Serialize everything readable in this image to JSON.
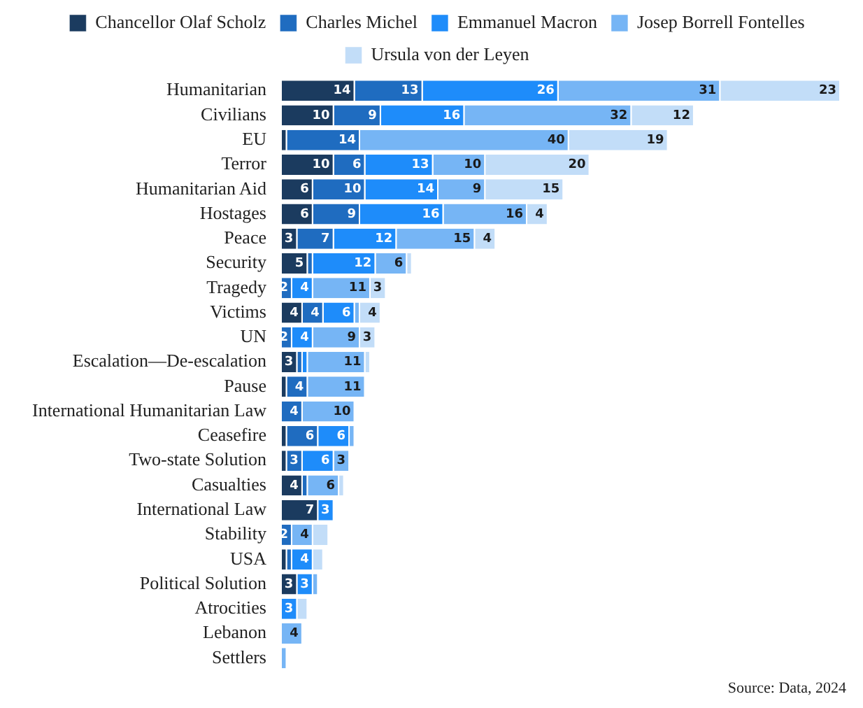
{
  "chart_data": {
    "type": "bar",
    "orientation": "horizontal",
    "stacked": true,
    "legend": "top",
    "data_labels": false,
    "categories": [
      "Humanitarian",
      "Civilians",
      "EU",
      "Terror",
      "Humanitarian Aid",
      "Hostages",
      "Peace",
      "Security",
      "Tragedy",
      "Victims",
      "UN",
      "Escalation—De-escalation",
      "Pause",
      "International Humanitarian Law",
      "Ceasefire",
      "Two-state Solution",
      "Casualties",
      "International Law",
      "Stability",
      "USA",
      "Political Solution",
      "Atrocities",
      "Lebanon",
      "Settlers"
    ],
    "series": [
      {
        "name": "Chancellor Olaf Scholz",
        "color": "#1b3b5f",
        "values": [
          14,
          10,
          1,
          10,
          6,
          6,
          3,
          5,
          0,
          4,
          0,
          3,
          1,
          0,
          1,
          1,
          4,
          7,
          0,
          1,
          3,
          0,
          0,
          0
        ],
        "value_labels": [
          "14",
          "10",
          null,
          "10",
          "6",
          "6",
          "3",
          "5",
          null,
          "4",
          null,
          "3",
          null,
          null,
          null,
          null,
          "4",
          "7",
          null,
          null,
          "3",
          null,
          null,
          null
        ]
      },
      {
        "name": "Charles Michel",
        "color": "#1f6cc0",
        "values": [
          13,
          9,
          14,
          6,
          10,
          9,
          7,
          1,
          2,
          4,
          2,
          1,
          4,
          4,
          6,
          3,
          1,
          0,
          2,
          1,
          0,
          0,
          0,
          0
        ],
        "value_labels": [
          "13",
          "9",
          "14",
          "6",
          "10",
          "9",
          "7",
          null,
          "2",
          "4",
          "2",
          null,
          "4",
          "4",
          "6",
          "3",
          null,
          null,
          "2",
          null,
          null,
          null,
          null,
          null
        ]
      },
      {
        "name": "Emmanuel Macron",
        "color": "#1e8cfa",
        "values": [
          26,
          16,
          0,
          13,
          14,
          16,
          12,
          12,
          4,
          6,
          4,
          1,
          0,
          0,
          6,
          6,
          0,
          3,
          0,
          4,
          3,
          3,
          0,
          0
        ],
        "value_labels": [
          "26",
          "16",
          null,
          "13",
          "14",
          "16",
          "12",
          "12",
          "4",
          "6",
          "4",
          null,
          null,
          null,
          "6",
          "6",
          null,
          "3",
          null,
          "4",
          "3",
          "3",
          null,
          null
        ]
      },
      {
        "name": "Josep Borrell Fontelles",
        "color": "#76b5f5",
        "values": [
          31,
          32,
          40,
          10,
          9,
          16,
          15,
          6,
          11,
          1,
          9,
          11,
          11,
          10,
          1,
          3,
          6,
          0,
          4,
          0,
          1,
          0,
          4,
          1
        ],
        "value_labels": [
          "31",
          "32",
          "40",
          "10",
          "9",
          "16",
          "15",
          "6",
          "11",
          null,
          "9",
          "11",
          "11",
          "10",
          null,
          "3",
          "6",
          null,
          "4",
          null,
          null,
          null,
          "4",
          null
        ]
      },
      {
        "name": "Ursula von der Leyen",
        "color": "#c2ddf8",
        "values": [
          23,
          12,
          19,
          20,
          15,
          4,
          4,
          1,
          3,
          4,
          3,
          1,
          0,
          0,
          0,
          0,
          1,
          0,
          3,
          2,
          0,
          2,
          0,
          0
        ],
        "value_labels": [
          "23",
          "12",
          "19",
          "20",
          "15",
          "4",
          "4",
          null,
          "3",
          "4",
          "3",
          null,
          null,
          null,
          null,
          null,
          null,
          null,
          null,
          null,
          null,
          null,
          null,
          null
        ]
      }
    ],
    "annotations": [
      "Source: Data, 2024"
    ]
  }
}
